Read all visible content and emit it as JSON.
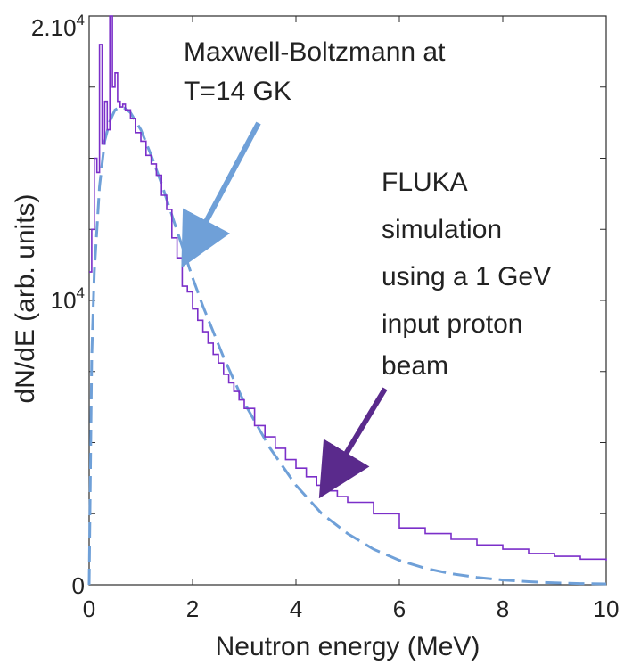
{
  "chart_data": {
    "type": "line",
    "title": "",
    "xlabel": "Neutron energy (MeV)",
    "ylabel": "dN/dE (arb. units)",
    "xlim": [
      0,
      10
    ],
    "ylim": [
      0,
      20000
    ],
    "log_x": false,
    "log_y": false,
    "grid": false,
    "x_ticks": [
      0,
      2,
      4,
      6,
      8,
      10
    ],
    "x_tick_labels": [
      "0",
      "2",
      "4",
      "6",
      "8",
      "10"
    ],
    "y_ticks": [
      0,
      2500,
      5000,
      7500,
      10000,
      12500,
      15000,
      17500,
      20000
    ],
    "y_tick_labels": [
      {
        "value": 0,
        "base": "0",
        "exp": ""
      },
      {
        "value": 10000,
        "base": "10",
        "exp": "4"
      },
      {
        "value": 20000,
        "base": "2.10",
        "exp": "4"
      }
    ],
    "series": [
      {
        "name": "FLUKA simulation using a 1 GeV input proton beam",
        "color": "#7B2FC9",
        "style": "step",
        "x": [
          0,
          0.05,
          0.1,
          0.15,
          0.2,
          0.25,
          0.3,
          0.35,
          0.4,
          0.45,
          0.5,
          0.55,
          0.6,
          0.65,
          0.7,
          0.8,
          0.9,
          1.0,
          1.1,
          1.2,
          1.3,
          1.4,
          1.5,
          1.6,
          1.7,
          1.8,
          1.9,
          2.0,
          2.1,
          2.2,
          2.3,
          2.4,
          2.5,
          2.6,
          2.7,
          2.8,
          2.9,
          3.0,
          3.2,
          3.4,
          3.6,
          3.8,
          4.0,
          4.2,
          4.4,
          4.6,
          4.8,
          5.0,
          5.5,
          6.0,
          6.5,
          7.0,
          7.5,
          8.0,
          8.5,
          9.0,
          9.5,
          10.0
        ],
        "y": [
          11000,
          12500,
          15000,
          14500,
          19000,
          15500,
          17000,
          16000,
          20000,
          17500,
          18000,
          17000,
          16800,
          16900,
          16700,
          16400,
          15900,
          15600,
          15100,
          14800,
          14400,
          13700,
          13200,
          12200,
          11500,
          10500,
          10300,
          9700,
          9300,
          8900,
          8500,
          8100,
          7800,
          7400,
          7100,
          6800,
          6500,
          6200,
          5600,
          5200,
          4800,
          4400,
          4100,
          3800,
          3500,
          3300,
          3100,
          2900,
          2500,
          2000,
          1800,
          1600,
          1400,
          1250,
          1100,
          1000,
          900,
          850
        ]
      },
      {
        "name": "Maxwell-Boltzmann at T=14 GK",
        "color": "#6FA0D8",
        "style": "dashed",
        "x": [
          0,
          0.05,
          0.1,
          0.2,
          0.3,
          0.4,
          0.5,
          0.6,
          0.7,
          0.8,
          1.0,
          1.2,
          1.4,
          1.6,
          1.8,
          2.0,
          2.2,
          2.4,
          2.6,
          2.8,
          3.0,
          3.5,
          4.0,
          4.5,
          5.0,
          5.5,
          6.0,
          6.5,
          7.0,
          7.5,
          8.0,
          8.5,
          9.0,
          9.5,
          10.0
        ],
        "y": [
          0,
          8000,
          11000,
          14000,
          15600,
          16300,
          16700,
          16800,
          16750,
          16600,
          16000,
          15100,
          14100,
          13000,
          11900,
          10800,
          9800,
          8900,
          8000,
          7200,
          6400,
          4800,
          3500,
          2500,
          1800,
          1250,
          860,
          580,
          390,
          260,
          170,
          110,
          70,
          45,
          30
        ]
      }
    ],
    "annotations": [
      {
        "text_lines": [
          "Maxwell-Boltzmann at",
          "T=14 GK"
        ],
        "color": "#6FA0D8",
        "arrow_target": [
          1.8,
          11500
        ]
      },
      {
        "text_lines": [
          "FLUKA",
          "simulation",
          "using a 1 GeV",
          "input proton",
          "beam"
        ],
        "color": "#7B2FC9",
        "arrow_target": [
          4.45,
          3000
        ]
      }
    ]
  }
}
